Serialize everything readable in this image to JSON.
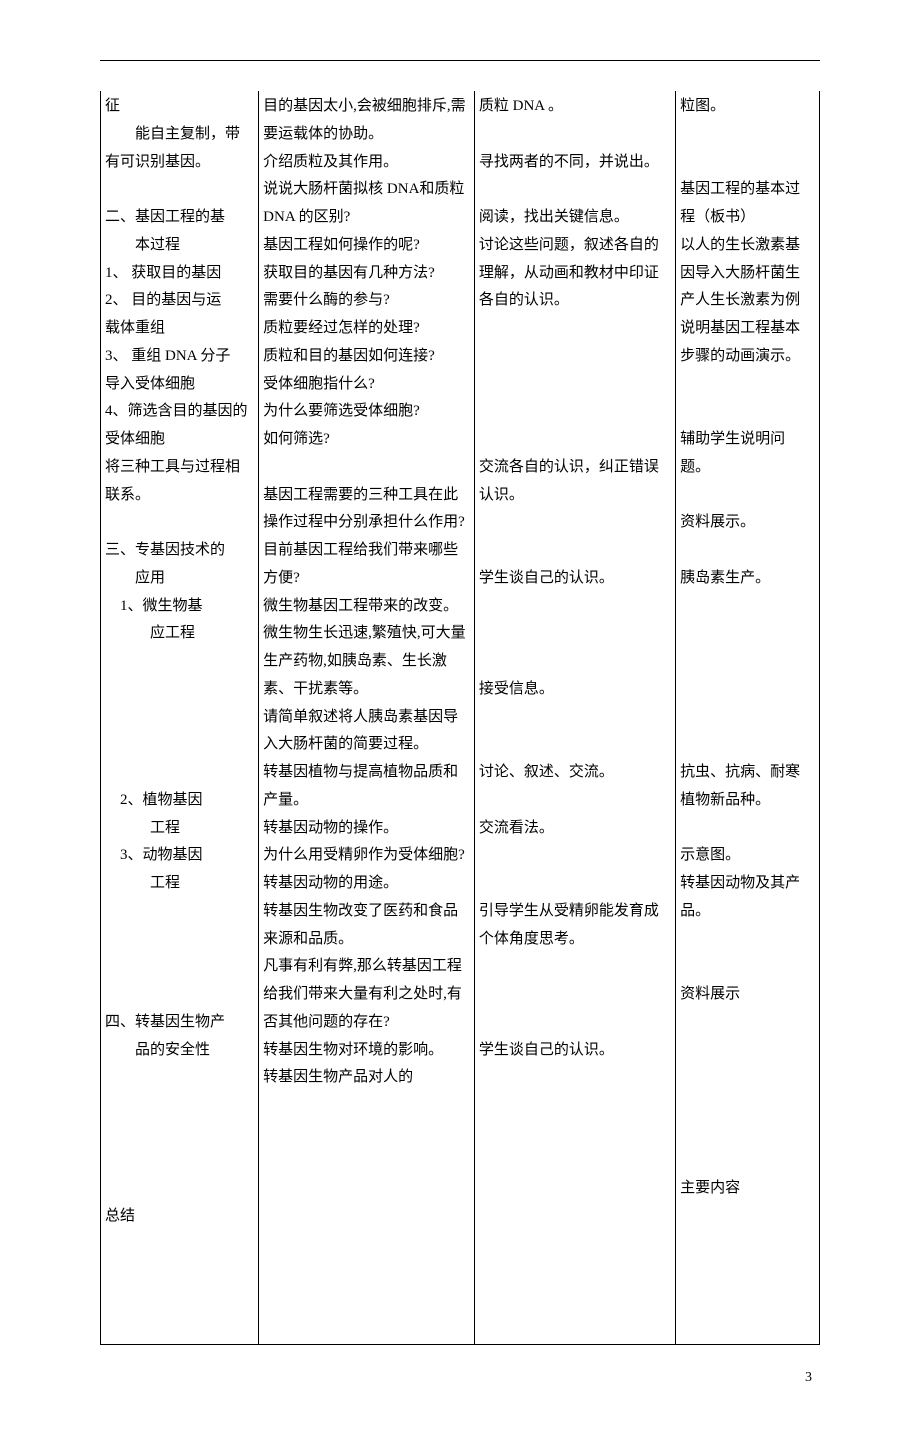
{
  "pageNumber": "3",
  "table": {
    "col1": [
      "征",
      "　　能自主复制，带有可识别基因。",
      "",
      "二、基因工程的基",
      "　　本过程",
      "1、 获取目的基因",
      "2、 目的基因与运",
      " 载体重组",
      "3、 重组 DNA 分子",
      " 导入受体细胞",
      "4、筛选含目的基因的受体细胞",
      "将三种工具与过程相联系。",
      "",
      "三、专基因技术的",
      "　　应用",
      "　1、微生物基",
      "　　　应工程",
      "",
      "",
      "",
      "",
      "",
      "　2、植物基因",
      "　　　工程",
      "　3、动物基因",
      "　　　工程",
      "",
      "",
      "",
      "",
      "四、转基因生物产",
      "　　品的安全性",
      "",
      "",
      "",
      "",
      "",
      "总结",
      "",
      "",
      ""
    ],
    "col2": [
      "目的基因太小,会被细胞排斥,需要运载体的协助。",
      "介绍质粒及其作用。",
      "说说大肠杆菌拟核 DNA和质粒 DNA 的区别?",
      "基因工程如何操作的呢?",
      "获取目的基因有几种方法?",
      "需要什么酶的参与?",
      "质粒要经过怎样的处理?",
      "质粒和目的基因如何连接?",
      "受体细胞指什么?",
      "为什么要筛选受体细胞?",
      "如何筛选?",
      "",
      "基因工程需要的三种工具在此操作过程中分别承担什么作用?",
      "目前基因工程给我们带来哪些方便?",
      "微生物基因工程带来的改变。",
      "微生物生长迅速,繁殖快,可大量生产药物,如胰岛素、生长激素、干扰素等。",
      "请简单叙述将人胰岛素基因导入大肠杆菌的简要过程。",
      "转基因植物与提高植物品质和产量。",
      "转基因动物的操作。",
      "为什么用受精卵作为受体细胞?",
      "转基因动物的用途。",
      "转基因生物改变了医药和食品来源和品质。",
      "凡事有利有弊,那么转基因工程给我们带来大量有利之处时,有否其他问题的存在?",
      "转基因生物对环境的影响。",
      "转基因生物产品对人的"
    ],
    "col3": [
      "质粒 DNA 。",
      "",
      "寻找两者的不同，并说出。",
      "",
      "阅读，找出关键信息。",
      "讨论这些问题，叙述各自的理解，从动画和教材中印证各自的认识。",
      "",
      "",
      "",
      "",
      "",
      "交流各自的认识，纠正错误认识。",
      "",
      "",
      "学生谈自己的认识。",
      "",
      "",
      "",
      "接受信息。",
      "",
      "",
      "讨论、叙述、交流。",
      "",
      "交流看法。",
      "",
      "",
      "引导学生从受精卵能发育成个体角度思考。",
      "",
      "",
      "",
      "学生谈自己的认识。",
      "",
      "",
      "",
      "",
      "",
      "",
      "",
      "",
      "",
      ""
    ],
    "col4": [
      "粒图。",
      "",
      "",
      "基因工程的基本过程（板书）",
      "以人的生长激素基因导入大肠杆菌生产人生长激素为例说明基因工程基本步骤的动画演示。",
      "",
      "",
      "辅助学生说明问题。",
      "",
      "资料展示。",
      "",
      "胰岛素生产。",
      "",
      "",
      "",
      "",
      "",
      "",
      "抗虫、抗病、耐寒植物新品种。",
      "",
      "示意图。",
      "转基因动物及其产品。",
      "",
      "",
      "资料展示",
      "",
      "",
      "",
      "",
      "",
      "",
      "主要内容",
      "",
      "",
      ""
    ]
  }
}
